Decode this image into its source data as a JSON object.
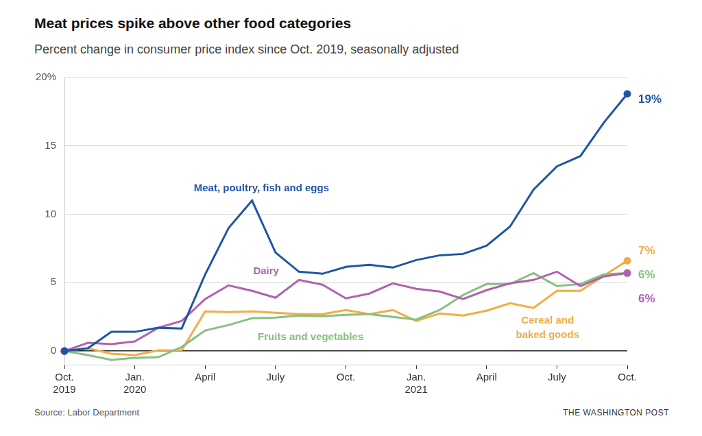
{
  "chart_data": {
    "type": "line",
    "title": "Meat prices spike above other food categories",
    "subtitle": "Percent change in consumer price index since Oct. 2019, seasonally adjusted",
    "source": "Source: Labor Department",
    "credit": "THE WASHINGTON POST",
    "categories": [
      "Oct. 2019",
      null,
      null,
      "Jan. 2020",
      null,
      null,
      "April",
      null,
      null,
      "July",
      null,
      null,
      "Oct.",
      null,
      null,
      "Jan. 2021",
      null,
      null,
      "April",
      null,
      null,
      "July",
      null,
      null,
      "Oct."
    ],
    "ylim": [
      -1,
      20
    ],
    "yticks": [
      0,
      5,
      10,
      15,
      {
        "value": 20,
        "label": "20%"
      }
    ],
    "grid": true,
    "marker": "circle",
    "series": [
      {
        "name": "Meat, poultry, fish and eggs",
        "color": "#1f55a5",
        "values": [
          0,
          0.2,
          1.4,
          1.4,
          1.7,
          1.65,
          5.6,
          9.0,
          11.0,
          7.2,
          5.8,
          5.65,
          6.15,
          6.3,
          6.1,
          6.65,
          7.0,
          7.1,
          7.7,
          9.1,
          11.8,
          13.5,
          14.25,
          16.7,
          18.8
        ],
        "value_labels": [
          null,
          null,
          null,
          null,
          null,
          null,
          null,
          null,
          null,
          null,
          null,
          null,
          null,
          null,
          null,
          null,
          null,
          null,
          null,
          null,
          null,
          null,
          null,
          null,
          "19%"
        ]
      },
      {
        "name": "Dairy",
        "color": "#b062b0",
        "values": [
          0,
          0.6,
          0.5,
          0.7,
          1.7,
          2.2,
          3.8,
          4.8,
          4.4,
          3.9,
          5.2,
          4.85,
          3.85,
          4.2,
          4.95,
          4.55,
          4.35,
          3.8,
          4.45,
          4.95,
          5.2,
          5.8,
          4.75,
          5.45,
          5.7
        ],
        "value_labels": [
          null,
          null,
          null,
          null,
          null,
          null,
          null,
          null,
          null,
          null,
          null,
          null,
          null,
          null,
          null,
          null,
          null,
          null,
          null,
          null,
          null,
          null,
          null,
          null,
          "6%"
        ]
      },
      {
        "name": "Fruits and vegetables",
        "color": "#86c07f",
        "values": [
          0,
          -0.3,
          -0.65,
          -0.5,
          -0.45,
          0.3,
          1.5,
          1.9,
          2.4,
          2.45,
          2.6,
          2.55,
          2.65,
          2.7,
          2.5,
          2.3,
          3.0,
          4.1,
          4.9,
          4.9,
          5.7,
          4.75,
          4.9,
          5.6,
          5.7
        ],
        "value_labels": [
          null,
          null,
          null,
          null,
          null,
          null,
          null,
          null,
          null,
          null,
          null,
          null,
          null,
          null,
          null,
          null,
          null,
          null,
          null,
          null,
          null,
          null,
          null,
          null,
          "6%"
        ]
      },
      {
        "name": "Cereal and baked goods",
        "color": "#f2ac45",
        "values": [
          0,
          0.2,
          -0.2,
          -0.3,
          0.05,
          0.05,
          2.9,
          2.85,
          2.9,
          2.8,
          2.7,
          2.7,
          3.0,
          2.7,
          3.0,
          2.2,
          2.75,
          2.6,
          2.95,
          3.5,
          3.15,
          4.4,
          4.4,
          5.5,
          6.6
        ],
        "value_labels": [
          null,
          null,
          null,
          null,
          null,
          null,
          null,
          null,
          null,
          null,
          null,
          null,
          null,
          null,
          null,
          null,
          null,
          null,
          null,
          null,
          null,
          null,
          null,
          null,
          "7%"
        ]
      }
    ]
  }
}
